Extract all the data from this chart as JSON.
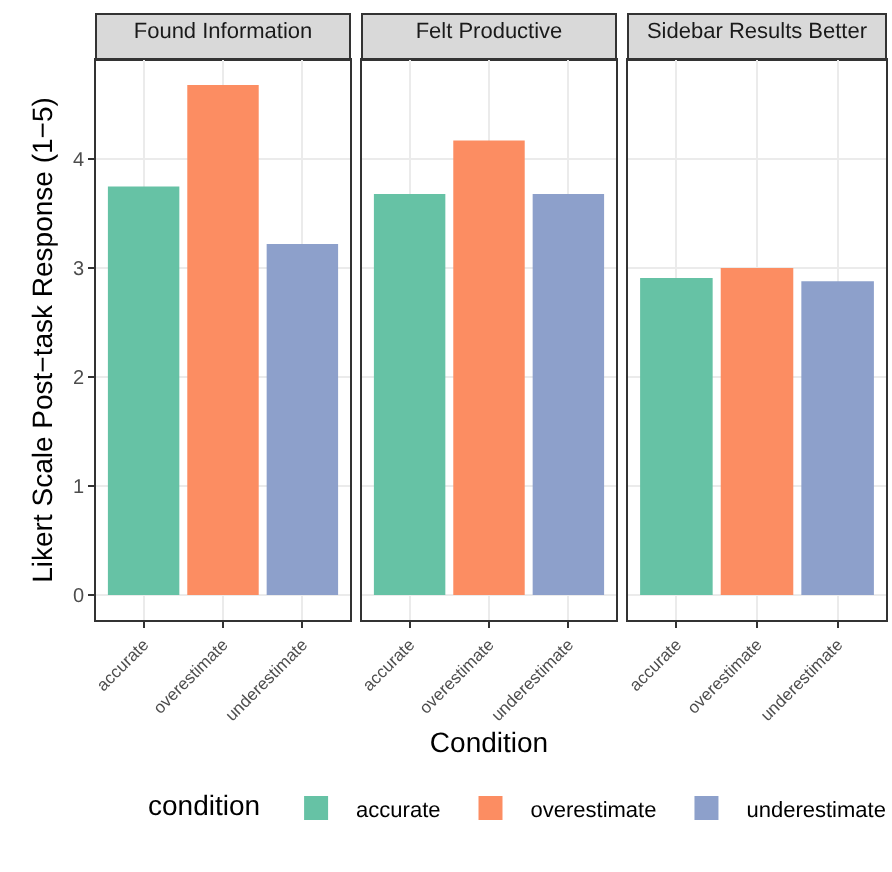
{
  "chart_data": [
    {
      "type": "bar",
      "title": "Found Information",
      "ylabel": "Likert Scale Post−task Response (1−5)",
      "categories": [
        "accurate",
        "overestimate",
        "underestimate"
      ],
      "series": [
        {
          "color": "#66c2a5",
          "values": [
            3.75,
            null,
            null
          ]
        },
        {
          "color": "#fc8d62",
          "values": [
            null,
            4.68,
            null
          ]
        },
        {
          "color": "#8da0cb",
          "values": [
            null,
            null,
            3.22
          ]
        }
      ],
      "ylim": [
        -0.23,
        4.91
      ],
      "yticks": [
        0,
        1,
        2,
        3,
        4
      ],
      "grid": true
    },
    {
      "type": "bar",
      "title": "Felt Productive",
      "xlabel": "Condition",
      "categories": [
        "accurate",
        "overestimate",
        "underestimate"
      ],
      "series": [
        {
          "color": "#66c2a5",
          "values": [
            3.68,
            null,
            null
          ]
        },
        {
          "color": "#fc8d62",
          "values": [
            null,
            4.17,
            null
          ]
        },
        {
          "color": "#8da0cb",
          "values": [
            null,
            null,
            3.68
          ]
        }
      ],
      "ylim": [
        -0.23,
        4.91
      ],
      "yticks": [
        0,
        1,
        2,
        3,
        4
      ],
      "grid": true,
      "tick_labels": "x"
    },
    {
      "type": "bar",
      "title": "Sidebar Results Better",
      "legend_title": "condition",
      "legend": "bottom",
      "categories": [
        "accurate",
        "overestimate",
        "underestimate"
      ],
      "series": [
        {
          "name": "accurate",
          "color": "#66c2a5",
          "values": [
            2.91,
            null,
            null
          ]
        },
        {
          "name": "overestimate",
          "color": "#fc8d62",
          "values": [
            null,
            3.0,
            null
          ]
        },
        {
          "name": "underestimate",
          "color": "#8da0cb",
          "values": [
            null,
            null,
            2.88
          ]
        }
      ],
      "ylim": [
        -0.23,
        4.91
      ],
      "yticks": [
        0,
        1,
        2,
        3,
        4
      ],
      "grid": true,
      "tick_labels": "x"
    }
  ]
}
